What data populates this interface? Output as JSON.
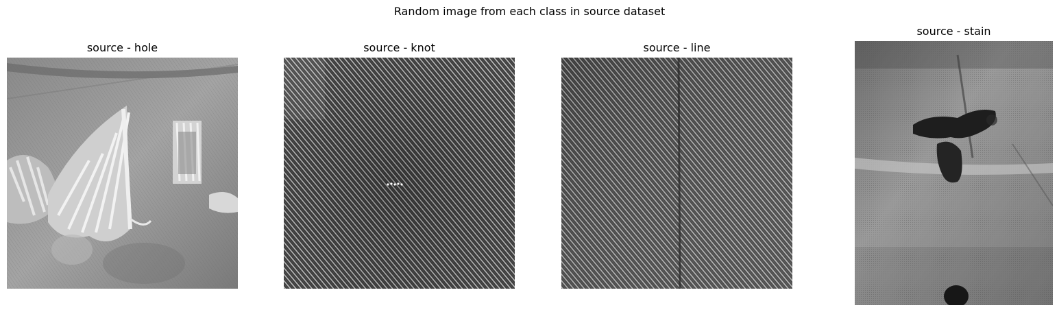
{
  "figure": {
    "suptitle": "Random image from each class in source dataset"
  },
  "panels": [
    {
      "title": "source - hole",
      "texture": "torn-denim-hole-image"
    },
    {
      "title": "source - knot",
      "texture": "twill-denim-knot-image"
    },
    {
      "title": "source - line",
      "texture": "twill-denim-line-image"
    },
    {
      "title": "source - stain",
      "texture": "stained-fabric-image"
    }
  ]
}
